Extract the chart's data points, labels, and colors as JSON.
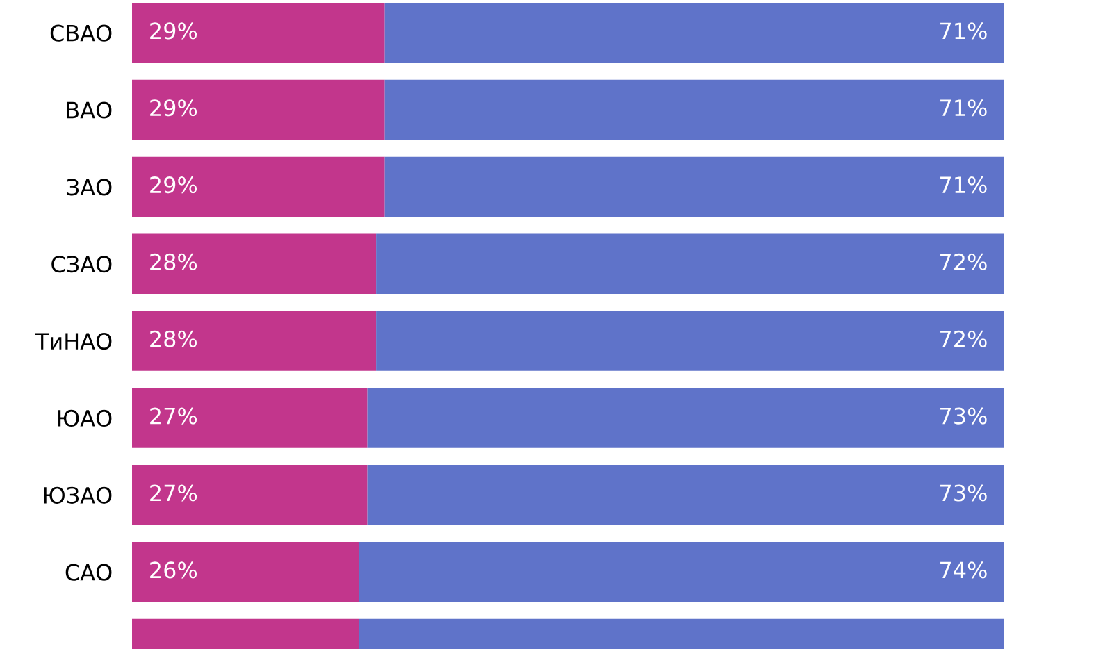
{
  "chart_data": {
    "type": "bar",
    "orientation": "horizontal",
    "stacked": true,
    "categories": [
      "СВАО",
      "ВАО",
      "ЗАО",
      "СЗАО",
      "ТиНАО",
      "ЮАО",
      "ЮЗАО",
      "САО",
      null
    ],
    "series": [
      {
        "color": "#c2368c",
        "values": [
          29,
          29,
          29,
          28,
          28,
          27,
          27,
          26,
          26
        ],
        "value_labels": [
          "29%",
          "29%",
          "29%",
          "28%",
          "28%",
          "27%",
          "27%",
          "26%",
          null
        ]
      },
      {
        "color": "#5f73c9",
        "values": [
          71,
          71,
          71,
          72,
          72,
          73,
          73,
          74,
          74
        ],
        "value_labels": [
          "71%",
          "71%",
          "71%",
          "72%",
          "72%",
          "73%",
          "73%",
          "74%",
          null
        ]
      }
    ],
    "xlim": [
      0,
      100
    ],
    "tick_labels": "y",
    "grid": false,
    "legend": false
  }
}
